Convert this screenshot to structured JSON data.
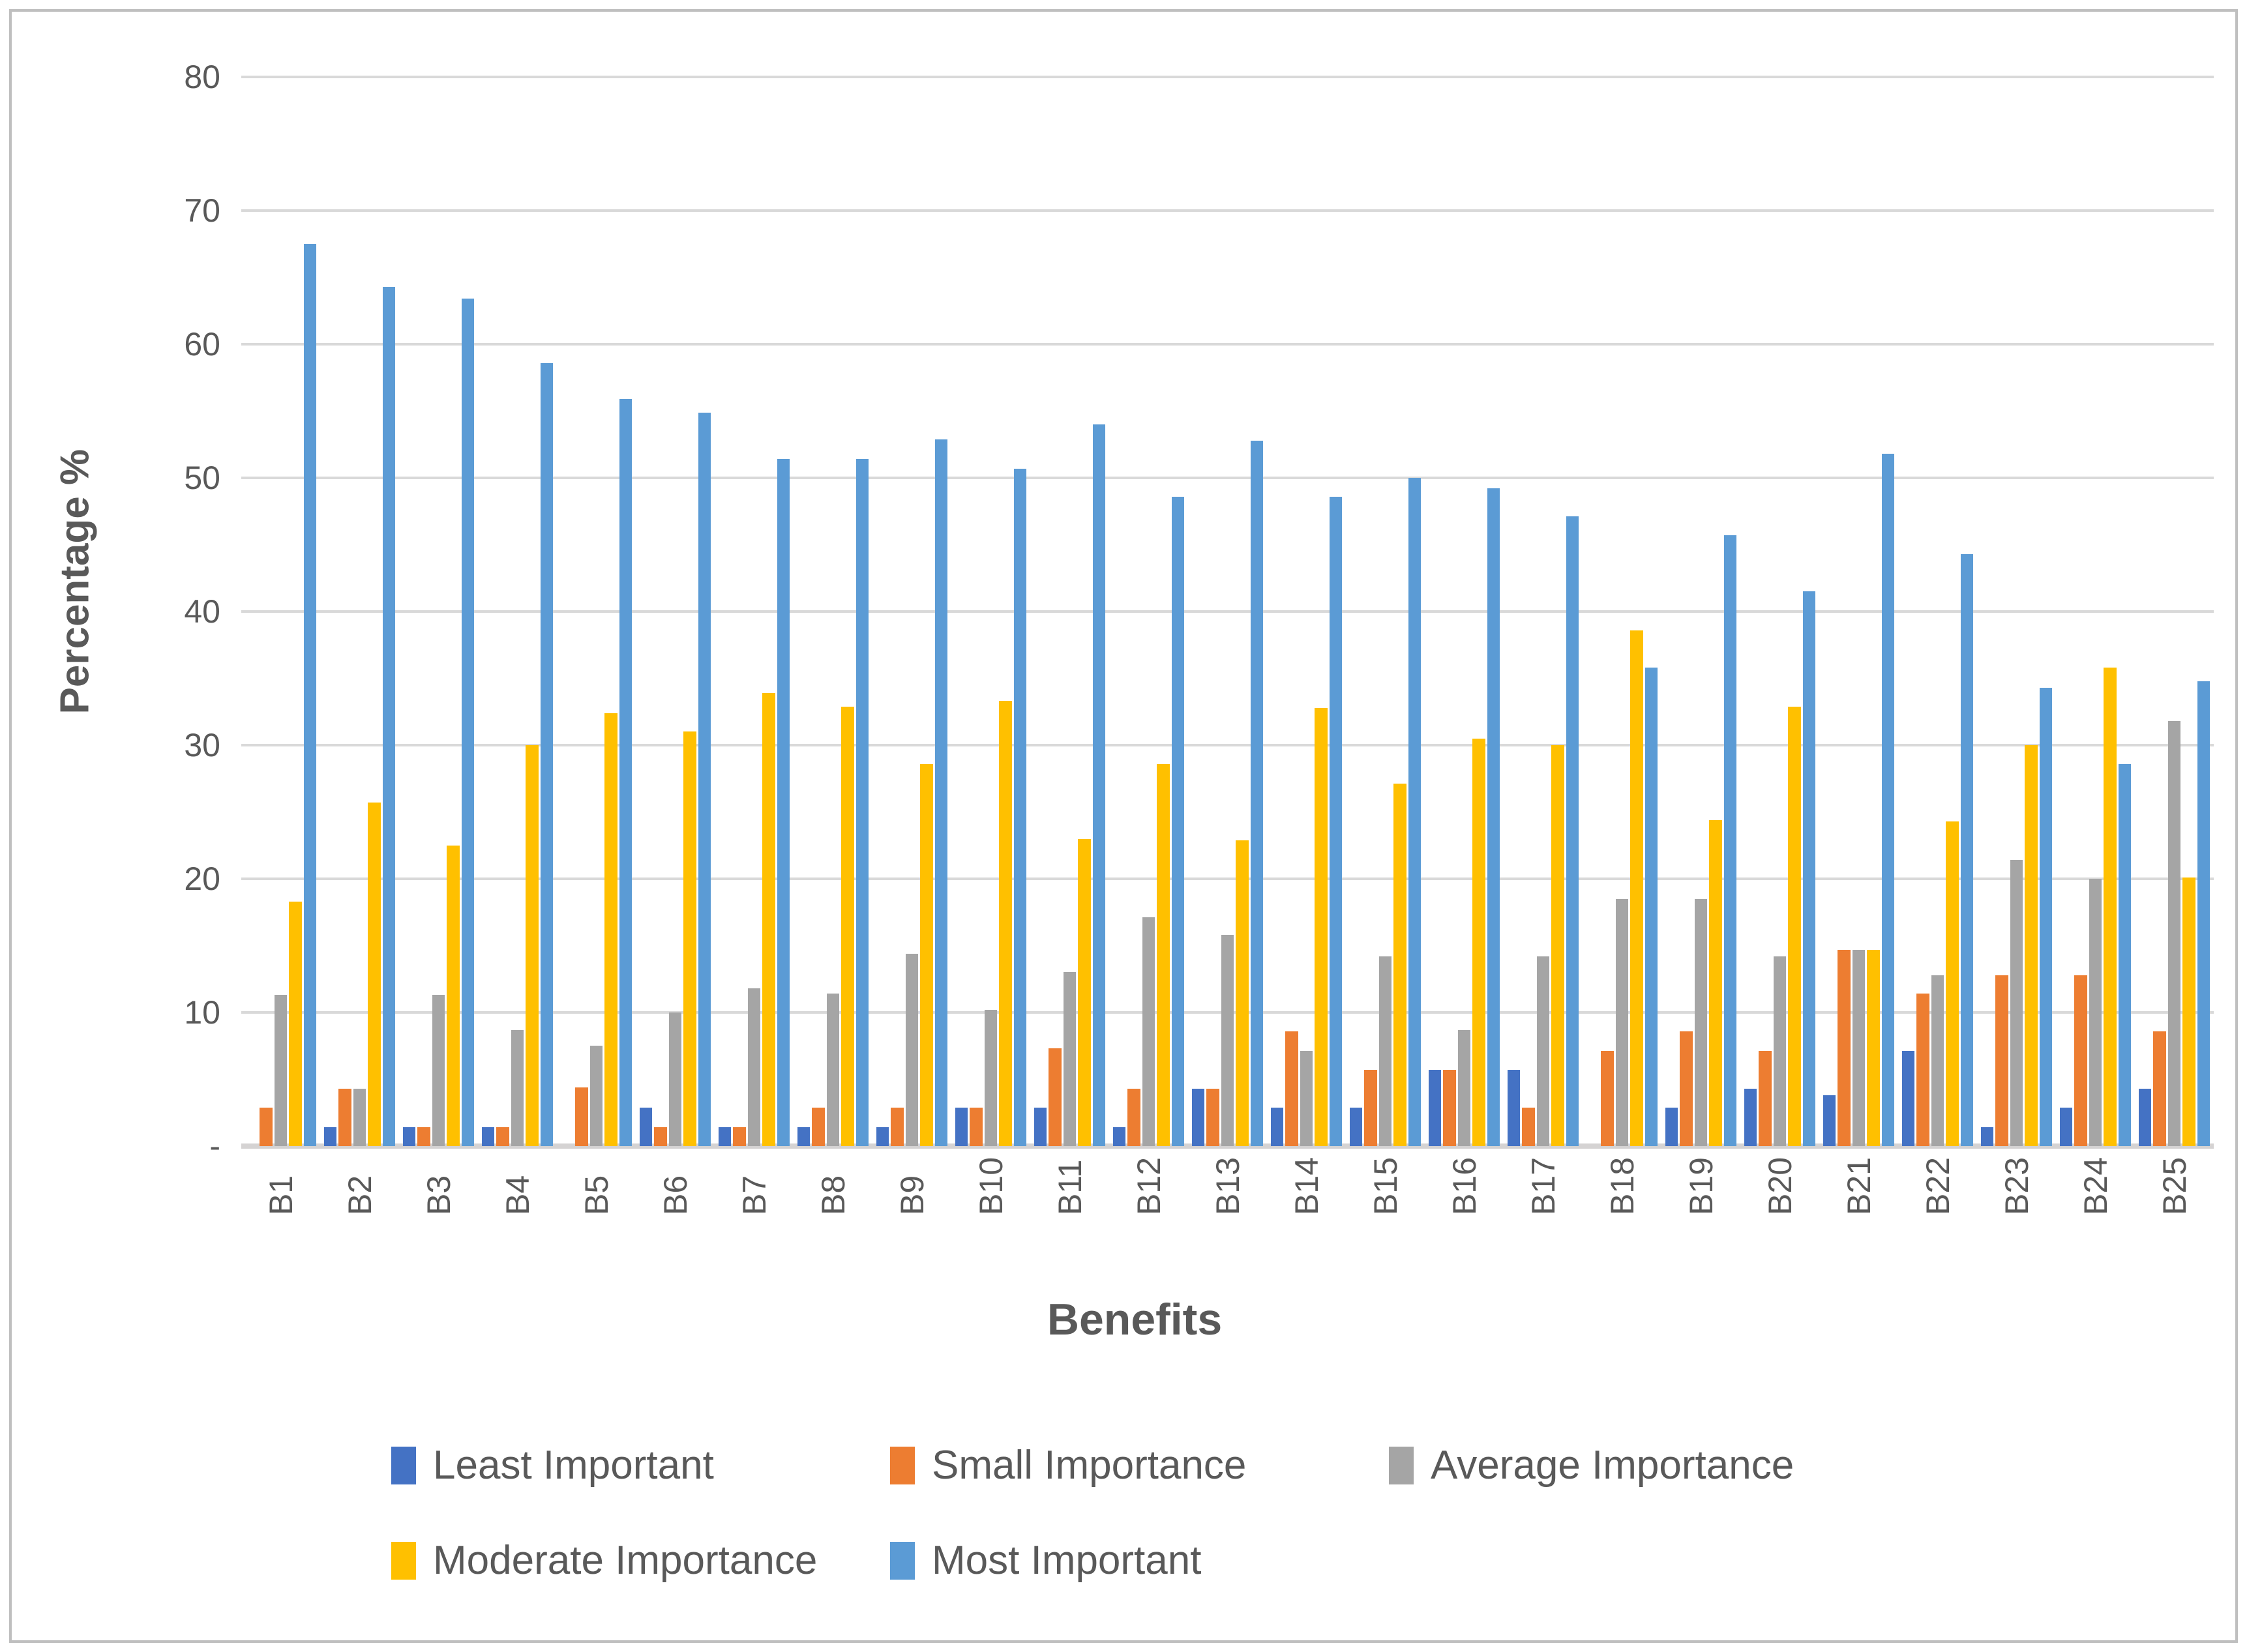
{
  "chart_data": {
    "type": "bar",
    "title": "",
    "xlabel": "Benefits",
    "ylabel": "Percentage %",
    "ylim": [
      0,
      80
    ],
    "grid": true,
    "legend_position": "bottom",
    "y_ticks": [
      "80",
      "70",
      "60",
      "50",
      "40",
      "30",
      "20",
      "10",
      "-"
    ],
    "y_tick_values": [
      80,
      70,
      60,
      50,
      40,
      30,
      20,
      10,
      0
    ],
    "categories": [
      "B1",
      "B2",
      "B3",
      "B4",
      "B5",
      "B6",
      "B7",
      "B8",
      "B9",
      "B10",
      "B11",
      "B12",
      "B13",
      "B14",
      "B15",
      "B16",
      "B17",
      "B18",
      "B19",
      "B20",
      "B21",
      "B22",
      "B23",
      "B24",
      "B25"
    ],
    "series": [
      {
        "name": "Least Important",
        "color": "#4472C4",
        "values": [
          0.0,
          1.4,
          1.4,
          1.4,
          0.0,
          2.9,
          1.4,
          1.4,
          1.4,
          2.9,
          2.9,
          1.4,
          4.3,
          2.9,
          2.9,
          5.7,
          5.7,
          0.0,
          2.9,
          4.3,
          3.8,
          7.1,
          1.4,
          2.9,
          4.3
        ]
      },
      {
        "name": "Small Importance",
        "color": "#ED7D31",
        "values": [
          2.9,
          4.3,
          1.4,
          1.4,
          4.4,
          1.4,
          1.4,
          2.9,
          2.9,
          2.9,
          7.3,
          4.3,
          4.3,
          8.6,
          5.7,
          5.7,
          2.9,
          7.1,
          8.6,
          7.1,
          14.7,
          11.4,
          12.8,
          12.8,
          8.6
        ]
      },
      {
        "name": "Average Importance",
        "color": "#A5A5A5",
        "values": [
          11.3,
          4.3,
          11.3,
          8.7,
          7.5,
          10.0,
          11.8,
          11.4,
          14.4,
          10.2,
          13.0,
          17.1,
          15.8,
          7.1,
          14.2,
          8.7,
          14.2,
          18.5,
          18.5,
          14.2,
          14.7,
          12.8,
          21.4,
          20.0,
          31.8
        ]
      },
      {
        "name": "Moderate Importance",
        "color": "#FFC000",
        "values": [
          18.3,
          25.7,
          22.5,
          30.0,
          32.4,
          31.0,
          33.9,
          32.9,
          28.6,
          33.3,
          23.0,
          28.6,
          22.9,
          32.8,
          27.1,
          30.5,
          30.0,
          38.6,
          24.4,
          32.9,
          14.7,
          24.3,
          30.0,
          35.8,
          20.1
        ]
      },
      {
        "name": "Most Important",
        "color": "#5B9BD5",
        "values": [
          67.5,
          64.3,
          63.4,
          58.6,
          55.9,
          54.9,
          51.4,
          51.4,
          52.9,
          50.7,
          54.0,
          48.6,
          52.8,
          48.6,
          50.0,
          49.2,
          47.1,
          35.8,
          45.7,
          41.5,
          51.8,
          44.3,
          34.3,
          28.6,
          34.8
        ]
      }
    ]
  },
  "axes": {
    "y_title": "Percentage %",
    "x_title": "Benefits"
  },
  "legend": {
    "row1": [
      "Least Important",
      "Small Importance",
      "Average Importance"
    ],
    "row2": [
      "Moderate Importance",
      "Most Important"
    ]
  },
  "style": {
    "gridline_color": "#D9D9D9",
    "tick_text_color": "#595959",
    "border_color": "#BFBFBF",
    "background": "#FFFFFF"
  }
}
